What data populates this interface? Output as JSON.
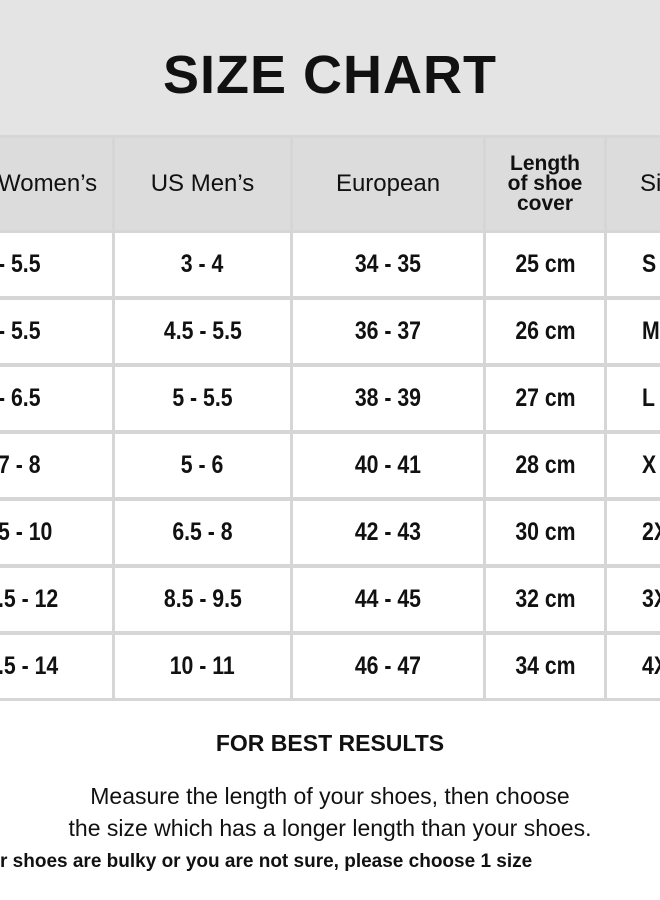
{
  "header": {
    "title": "SIZE CHART"
  },
  "table": {
    "columns": [
      "Women’s",
      "US Men’s",
      "European",
      "Length of shoe cover",
      "Si"
    ],
    "rows": [
      [
        "- 5.5",
        "3 - 4",
        "34 - 35",
        "25 cm",
        "S"
      ],
      [
        "- 5.5",
        "4.5 - 5.5",
        "36 - 37",
        "26 cm",
        "M"
      ],
      [
        "- 6.5",
        "5 - 5.5",
        "38 - 39",
        "27 cm",
        "L"
      ],
      [
        "7 - 8",
        "5 - 6",
        "40 - 41",
        "28 cm",
        "X"
      ],
      [
        "5 - 10",
        "6.5 - 8",
        "42 - 43",
        "30 cm",
        "2X"
      ],
      [
        ".5 - 12",
        "8.5 - 9.5",
        "44 - 45",
        "32 cm",
        "3X"
      ],
      [
        ".5 -  14",
        "10 - 11",
        "46 - 47",
        "34 cm",
        "4X"
      ]
    ]
  },
  "footer": {
    "heading": "FOR BEST RESULTS",
    "lines": [
      "Measure the length of your shoes, then choose",
      "the size which has a longer length than your shoes.",
      "r shoes are bulky or you are not sure, please choose 1 size"
    ]
  }
}
